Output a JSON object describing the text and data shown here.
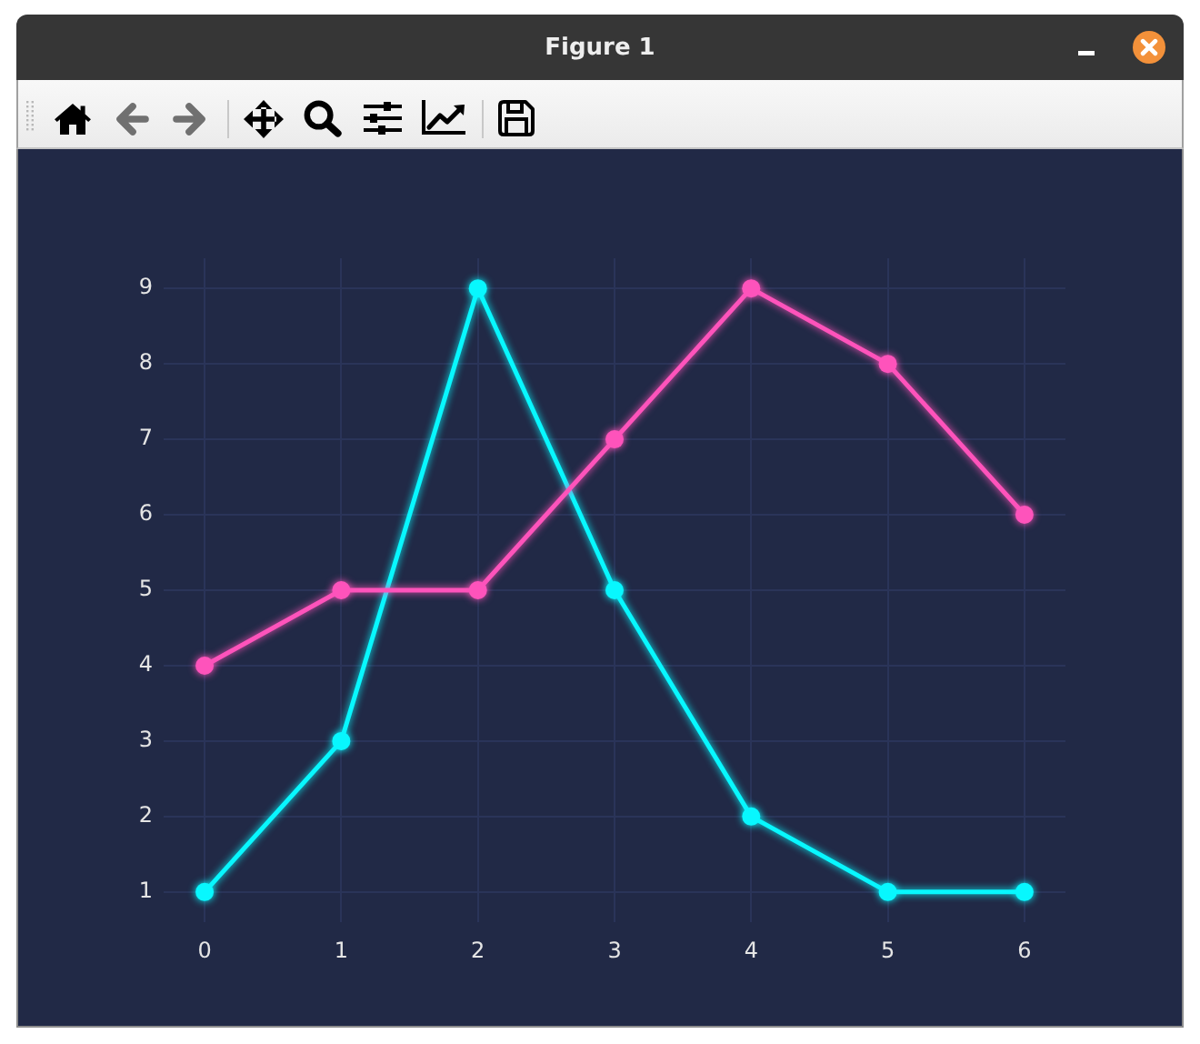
{
  "chart_data": {
    "type": "line",
    "title": "Figure 1",
    "x": [
      0,
      1,
      2,
      3,
      4,
      5,
      6
    ],
    "series": [
      {
        "color": "#08f7fe",
        "values": [
          1,
          3,
          9,
          5,
          2,
          1,
          1
        ]
      },
      {
        "color": "#fe53bb",
        "values": [
          4,
          5,
          5,
          7,
          9,
          8,
          6
        ]
      }
    ],
    "xlim": [
      -0.3,
      6.3
    ],
    "ylim": [
      0.6,
      9.4
    ],
    "xticks": [
      0,
      1,
      2,
      3,
      4,
      5,
      6
    ],
    "yticks": [
      1,
      2,
      3,
      4,
      5,
      6,
      7,
      8,
      9
    ],
    "grid": true,
    "marker": "circle",
    "line_style": "solid"
  }
}
